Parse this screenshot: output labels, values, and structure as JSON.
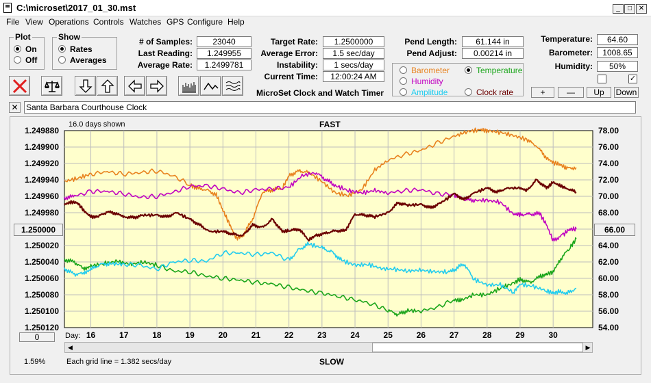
{
  "window": {
    "title": "C:\\microset\\2017_01_30.mst"
  },
  "menu": [
    "File",
    "View",
    "Operations",
    "Controls",
    "Watches",
    "GPS",
    "Configure",
    "Help"
  ],
  "plot_group": {
    "legend": "Plot",
    "on": "On",
    "off": "Off",
    "selected": "On"
  },
  "show_group": {
    "legend": "Show",
    "rates": "Rates",
    "averages": "Averages",
    "selected": "Rates"
  },
  "stats": {
    "samples_label": "# of Samples:",
    "samples": "23040",
    "last_label": "Last Reading:",
    "last": "1.249955",
    "avg_label": "Average Rate:",
    "avg": "1.2499781",
    "target_label": "Target Rate:",
    "target": "1.2500000",
    "avgerr_label": "Average Error:",
    "avgerr": "1.5 sec/day",
    "instab_label": "Instability:",
    "instab": "1 secs/day",
    "time_label": "Current Time:",
    "time": "12:00:24 AM",
    "pendlen_label": "Pend Length:",
    "pendlen": "61.144 in",
    "pendadj_label": "Pend Adjust:",
    "pendadj": "0.00214 in",
    "temp_label": "Temperature:",
    "temp": "64.60",
    "baro_label": "Barometer:",
    "baro": "1008.65",
    "hum_label": "Humidity:",
    "hum": "50%"
  },
  "app_name": "MicroSet Clock and Watch Timer",
  "sensors": {
    "barometer": "Barometer",
    "temperature": "Temperature",
    "humidity": "Humidity",
    "amplitude": "Amplitude",
    "clock_rate": "Clock rate",
    "selected": "Temperature",
    "colors": {
      "barometer": "#e8821e",
      "temperature": "#1aa51a",
      "humidity": "#c000c0",
      "amplitude": "#22ccee",
      "clock_rate": "#6b0000"
    }
  },
  "scale_buttons": {
    "plus": "+",
    "minus": "—",
    "up": "Up",
    "down": "Down"
  },
  "clock_name": "Santa Barbara Courthouse Clock",
  "close_x": "✕",
  "plot": {
    "days_shown": "16.0 days shown",
    "fast": "FAST",
    "slow": "SLOW",
    "grid_note": "Each grid line = 1.382 secs/day",
    "day_label": "Day:",
    "left_btn": "1.250000",
    "right_btn": "66.00",
    "bottom_btn": "0",
    "percent": "1.59%"
  },
  "chart_data": {
    "type": "line",
    "x_label": "Day:",
    "x_ticks": [
      16,
      17,
      18,
      19,
      20,
      21,
      22,
      23,
      24,
      25,
      26,
      27,
      28,
      29,
      30
    ],
    "xlim": [
      15.2,
      31.2
    ],
    "y_left_ticks": [
      "1.249880",
      "1.249900",
      "1.249920",
      "1.249940",
      "1.249960",
      "1.249980",
      "1.250000",
      "1.250020",
      "1.250040",
      "1.250060",
      "1.250080",
      "1.250100",
      "1.250120"
    ],
    "y_left_range": [
      1.24988,
      1.25012
    ],
    "y_left_inverted": true,
    "y_right_ticks": [
      "78.00",
      "76.00",
      "74.00",
      "72.00",
      "70.00",
      "68.00",
      "66.00",
      "64.00",
      "62.00",
      "60.00",
      "58.00",
      "56.00",
      "54.00"
    ],
    "y_right_range": [
      54,
      78
    ],
    "series": [
      {
        "name": "Barometer",
        "color": "#e8821e",
        "axis": "right",
        "x": [
          15.2,
          15.6,
          16.0,
          16.5,
          17.0,
          17.5,
          18.0,
          18.5,
          19.0,
          19.2,
          19.5,
          19.8,
          20.0,
          20.2,
          20.4,
          20.6,
          20.9,
          21.2,
          21.5,
          21.8,
          22.0,
          22.3,
          22.6,
          23.0,
          23.4,
          23.8,
          24.2,
          24.6,
          25.0,
          25.5,
          26.0,
          26.5,
          27.0,
          27.4,
          27.8,
          28.0,
          28.4,
          28.8,
          29.2,
          29.5,
          29.8,
          30.0,
          30.2,
          30.4,
          30.7
        ],
        "y": [
          71.8,
          72.2,
          72.7,
          73.0,
          72.7,
          72.9,
          73.1,
          72.5,
          71.4,
          71.0,
          70.8,
          70.2,
          68.3,
          66.6,
          64.9,
          65.2,
          67.2,
          70.5,
          70.8,
          71.0,
          72.5,
          73.1,
          72.9,
          71.8,
          70.4,
          70.1,
          70.8,
          73.2,
          74.4,
          75.1,
          75.6,
          76.5,
          77.3,
          77.9,
          78.1,
          78.0,
          77.8,
          77.4,
          76.9,
          76.1,
          74.7,
          74.1,
          73.9,
          73.4,
          73.5
        ]
      },
      {
        "name": "Temperature",
        "color": "#1aa51a",
        "axis": "right",
        "x": [
          15.2,
          15.5,
          15.8,
          16.0,
          16.4,
          16.8,
          17.2,
          17.6,
          18.0,
          18.5,
          19.0,
          19.5,
          20.0,
          20.5,
          21.0,
          21.5,
          22.0,
          22.5,
          23.0,
          23.5,
          24.0,
          24.5,
          25.0,
          25.3,
          25.6,
          26.0,
          26.5,
          27.0,
          27.2,
          27.6,
          28.0,
          28.4,
          28.8,
          29.0,
          29.3,
          29.6,
          29.8,
          30.0,
          30.2,
          30.5,
          30.7
        ],
        "y": [
          62.3,
          62.0,
          61.1,
          61.5,
          61.8,
          62.1,
          61.7,
          62.0,
          61.6,
          60.9,
          60.8,
          60.3,
          60.0,
          59.8,
          59.5,
          59.3,
          58.9,
          58.5,
          58.2,
          57.8,
          57.4,
          56.9,
          56.1,
          55.6,
          56.1,
          56.0,
          56.5,
          57.4,
          57.3,
          58.0,
          58.0,
          58.8,
          59.4,
          59.9,
          59.5,
          60.2,
          60.5,
          60.8,
          62.2,
          63.7,
          64.8
        ]
      },
      {
        "name": "Humidity",
        "color": "#c000c0",
        "axis": "right",
        "x": [
          15.2,
          15.5,
          16.0,
          16.5,
          17.0,
          17.5,
          18.0,
          18.5,
          19.0,
          19.5,
          20.0,
          20.5,
          21.0,
          21.5,
          22.0,
          22.4,
          22.8,
          23.1,
          23.4,
          23.8,
          24.2,
          24.6,
          25.0,
          25.5,
          26.0,
          26.5,
          27.0,
          27.3,
          27.6,
          28.0,
          28.4,
          28.8,
          29.0,
          29.3,
          29.6,
          29.8,
          30.0,
          30.3,
          30.5,
          30.7
        ],
        "y": [
          69.8,
          70.0,
          70.6,
          70.6,
          70.3,
          69.9,
          70.0,
          70.5,
          71.2,
          71.3,
          70.9,
          70.4,
          70.8,
          70.9,
          71.1,
          72.5,
          72.9,
          72.1,
          71.3,
          70.7,
          70.4,
          70.7,
          70.4,
          70.7,
          70.8,
          70.3,
          70.2,
          69.6,
          69.5,
          69.5,
          69.3,
          67.8,
          67.8,
          67.8,
          67.9,
          66.5,
          64.6,
          65.3,
          66.0,
          66.0
        ]
      },
      {
        "name": "Amplitude",
        "color": "#22ccee",
        "axis": "right",
        "x": [
          15.2,
          15.5,
          15.8,
          16.0,
          16.3,
          16.6,
          17.0,
          17.5,
          18.0,
          18.5,
          19.0,
          19.5,
          20.0,
          20.5,
          21.0,
          21.5,
          22.0,
          22.3,
          22.6,
          23.0,
          23.3,
          23.6,
          24.0,
          24.4,
          24.8,
          25.2,
          25.6,
          26.0,
          26.4,
          26.8,
          27.0,
          27.3,
          27.6,
          28.0,
          28.4,
          28.8,
          29.0,
          29.4,
          29.8,
          30.0,
          30.2,
          30.4,
          30.7
        ],
        "y": [
          61.2,
          60.5,
          60.6,
          61.1,
          61.7,
          61.8,
          61.7,
          61.6,
          61.1,
          62.0,
          62.2,
          62.1,
          63.1,
          63.1,
          62.9,
          63.1,
          62.2,
          63.5,
          64.2,
          63.7,
          63.2,
          62.2,
          61.6,
          61.7,
          61.2,
          61.1,
          60.9,
          61.0,
          60.8,
          60.8,
          61.0,
          61.8,
          59.9,
          59.2,
          59.2,
          58.3,
          59.3,
          59.0,
          58.5,
          58.2,
          58.4,
          58.1,
          58.8
        ]
      },
      {
        "name": "Clock rate",
        "color": "#6b0000",
        "axis": "left",
        "x": [
          15.2,
          15.4,
          15.6,
          15.8,
          16.0,
          16.2,
          16.5,
          16.8,
          17.0,
          17.3,
          17.6,
          18.0,
          18.3,
          18.6,
          19.0,
          19.3,
          19.6,
          20.0,
          20.3,
          20.6,
          20.9,
          21.2,
          21.5,
          21.8,
          22.0,
          22.3,
          22.6,
          22.8,
          23.1,
          23.4,
          23.7,
          24.0,
          24.3,
          24.6,
          25.0,
          25.3,
          25.6,
          26.0,
          26.3,
          26.6,
          27.0,
          27.3,
          27.6,
          28.0,
          28.3,
          28.6,
          29.0,
          29.2,
          29.5,
          29.8,
          30.0,
          30.2,
          30.4,
          30.7
        ],
        "y": [
          1.24997,
          1.249967,
          1.249968,
          1.249978,
          1.249985,
          1.249985,
          1.249979,
          1.249981,
          1.249985,
          1.249986,
          1.249983,
          1.249983,
          1.249985,
          1.24998,
          1.249988,
          1.249995,
          1.250003,
          1.250003,
          1.250006,
          1.250008,
          1.249995,
          1.249998,
          1.249988,
          1.250003,
          1.250002,
          1.25,
          1.250013,
          1.250008,
          1.250005,
          1.250002,
          1.250002,
          1.249982,
          1.249983,
          1.249985,
          1.24998,
          1.249968,
          1.249971,
          1.24997,
          1.249974,
          1.249968,
          1.249957,
          1.249964,
          1.249956,
          1.24995,
          1.249955,
          1.24995,
          1.24995,
          1.249953,
          1.24994,
          1.24995,
          1.249943,
          1.249947,
          1.24995,
          1.249955
        ]
      }
    ]
  }
}
